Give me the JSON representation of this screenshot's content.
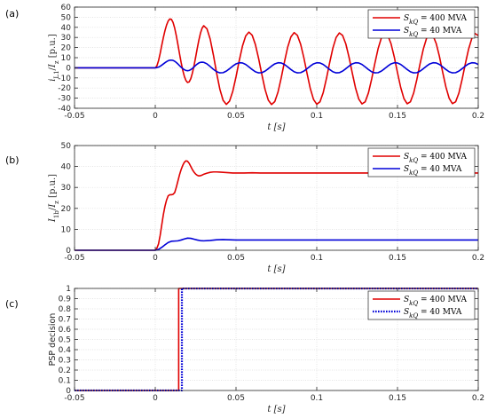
{
  "chart_data": [
    {
      "type": "line",
      "panel_label": "(a)",
      "xlabel": "t [s]",
      "ylabel": "i_L1/I_z [p.u.]",
      "xlim": [
        -0.05,
        0.2
      ],
      "ylim": [
        -40,
        60
      ],
      "xticks": [
        -0.05,
        0,
        0.05,
        0.1,
        0.15,
        0.2
      ],
      "yticks": [
        -40,
        -30,
        -20,
        -10,
        0,
        10,
        20,
        30,
        40,
        50,
        60
      ],
      "xtick_labels": [
        "-0.05",
        "0",
        "0.05",
        "0.1",
        "0.15",
        "0.2"
      ],
      "ytick_labels": [
        "-40",
        "-30",
        "-20",
        "-10",
        "0",
        "10",
        "20",
        "30",
        "40",
        "50",
        "60"
      ],
      "grid": true,
      "legend_position": "top-right",
      "series": [
        {
          "name": "S_kQ = 400 MVA",
          "legend": {
            "sym": "S",
            "sub": "kQ",
            "rest": " = 400 MVA"
          },
          "color": "#e00000",
          "line_style": "solid",
          "x": [
            -0.05,
            0,
            0.001,
            0.002,
            0.003,
            0.004,
            0.005,
            0.006,
            0.007,
            0.008,
            0.009,
            0.01,
            0.011,
            0.012,
            0.013,
            0.014,
            0.015,
            0.016,
            0.017,
            0.018,
            0.019,
            0.02,
            0.021,
            0.022,
            0.023,
            0.024,
            0.025,
            0.026,
            0.027,
            0.028,
            0.029,
            0.03,
            0.032,
            0.034,
            0.036,
            0.038,
            0.04,
            0.042,
            0.044,
            0.046,
            0.048,
            0.05,
            0.052,
            0.054,
            0.056,
            0.058,
            0.06,
            0.062,
            0.064,
            0.066,
            0.068,
            0.07,
            0.072,
            0.074,
            0.076,
            0.078,
            0.08,
            0.082,
            0.084,
            0.086,
            0.088,
            0.09,
            0.092,
            0.094,
            0.096,
            0.098,
            0.1,
            0.102,
            0.104,
            0.106,
            0.108,
            0.11,
            0.112,
            0.114,
            0.116,
            0.118,
            0.12,
            0.122,
            0.124,
            0.126,
            0.128,
            0.13,
            0.132,
            0.134,
            0.136,
            0.138,
            0.14,
            0.142,
            0.144,
            0.146,
            0.148,
            0.15,
            0.152,
            0.154,
            0.156,
            0.158,
            0.16,
            0.162,
            0.164,
            0.166,
            0.168,
            0.17,
            0.172,
            0.174,
            0.176,
            0.178,
            0.18,
            0.182,
            0.184,
            0.186,
            0.188,
            0.19,
            0.192,
            0.194,
            0.196,
            0.198,
            0.2
          ],
          "y": [
            0,
            0,
            1.9,
            6.9,
            14.0,
            22.1,
            29.8,
            36.7,
            42.3,
            46.3,
            48.3,
            47.9,
            44.9,
            39.4,
            31.9,
            23.2,
            14.1,
            5.4,
            -2.3,
            -8.4,
            -12.6,
            -14.5,
            -13.9,
            -10.7,
            -5.2,
            2.1,
            10.5,
            19.2,
            27.4,
            34.3,
            39.2,
            41.6,
            38.6,
            28.4,
            12.6,
            -5.3,
            -21.2,
            -32.1,
            -36.2,
            -32.9,
            -23.2,
            -8.9,
            7.1,
            21.5,
            31.5,
            35.3,
            32.2,
            23.0,
            9.2,
            -6.6,
            -21.4,
            -32.0,
            -36.3,
            -33.4,
            -24.0,
            -9.9,
            5.9,
            20.4,
            30.6,
            34.8,
            32.1,
            23.4,
            10.0,
            -5.7,
            -20.5,
            -31.3,
            -36.0,
            -33.6,
            -24.5,
            -10.6,
            5.1,
            19.6,
            30.0,
            34.5,
            32.0,
            23.6,
            10.4,
            -5.2,
            -19.9,
            -30.8,
            -35.7,
            -33.6,
            -24.8,
            -11.1,
            4.5,
            19.0,
            29.5,
            34.3,
            32.0,
            23.8,
            10.7,
            -4.8,
            -19.5,
            -30.5,
            -35.6,
            -33.6,
            -25.0,
            -11.4,
            4.2,
            18.6,
            29.2,
            34.1,
            31.9,
            23.9,
            11.0,
            -4.5,
            -19.1,
            -30.2,
            -35.4,
            -33.6,
            -25.1,
            -11.6,
            3.9,
            18.3,
            28.9,
            33.9,
            31.9
          ]
        },
        {
          "name": "S_kQ = 40 MVA",
          "legend": {
            "sym": "S",
            "sub": "kQ",
            "rest": " = 40 MVA"
          },
          "color": "#0000d8",
          "line_style": "solid",
          "x": [
            -0.05,
            0,
            0.001,
            0.002,
            0.003,
            0.004,
            0.005,
            0.006,
            0.007,
            0.008,
            0.009,
            0.01,
            0.011,
            0.012,
            0.013,
            0.014,
            0.015,
            0.016,
            0.017,
            0.018,
            0.019,
            0.02,
            0.021,
            0.022,
            0.023,
            0.024,
            0.025,
            0.026,
            0.027,
            0.028,
            0.029,
            0.03,
            0.032,
            0.034,
            0.036,
            0.038,
            0.04,
            0.042,
            0.044,
            0.046,
            0.048,
            0.05,
            0.052,
            0.054,
            0.056,
            0.058,
            0.06,
            0.062,
            0.064,
            0.066,
            0.068,
            0.07,
            0.072,
            0.074,
            0.076,
            0.078,
            0.08,
            0.082,
            0.084,
            0.086,
            0.088,
            0.09,
            0.092,
            0.094,
            0.096,
            0.098,
            0.1,
            0.102,
            0.104,
            0.106,
            0.108,
            0.11,
            0.112,
            0.114,
            0.116,
            0.118,
            0.12,
            0.122,
            0.124,
            0.126,
            0.128,
            0.13,
            0.132,
            0.134,
            0.136,
            0.138,
            0.14,
            0.142,
            0.144,
            0.146,
            0.148,
            0.15,
            0.152,
            0.154,
            0.156,
            0.158,
            0.16,
            0.162,
            0.164,
            0.166,
            0.168,
            0.17,
            0.172,
            0.174,
            0.176,
            0.178,
            0.18,
            0.182,
            0.184,
            0.186,
            0.188,
            0.19,
            0.192,
            0.194,
            0.196,
            0.198,
            0.2
          ],
          "y": [
            0,
            0,
            0.2,
            0.7,
            1.5,
            2.6,
            3.8,
            5.0,
            6.1,
            7.0,
            7.5,
            7.6,
            7.3,
            6.5,
            5.3,
            3.8,
            2.2,
            0.6,
            -0.8,
            -1.9,
            -2.6,
            -2.9,
            -2.6,
            -1.8,
            -0.6,
            0.9,
            2.4,
            3.7,
            4.8,
            5.4,
            5.6,
            5.4,
            3.9,
            1.3,
            -1.5,
            -3.8,
            -5.0,
            -4.8,
            -3.3,
            -0.9,
            1.7,
            3.9,
            5.0,
            4.8,
            3.3,
            0.9,
            -1.7,
            -3.9,
            -5.0,
            -4.8,
            -3.3,
            -0.9,
            1.7,
            3.9,
            5.0,
            4.8,
            3.3,
            0.9,
            -1.7,
            -3.9,
            -5.0,
            -4.8,
            -3.3,
            -0.9,
            1.7,
            3.9,
            5.0,
            4.8,
            3.3,
            0.9,
            -1.7,
            -3.9,
            -5.0,
            -4.8,
            -3.3,
            -0.9,
            1.7,
            3.9,
            5.0,
            4.8,
            3.3,
            0.9,
            -1.7,
            -3.9,
            -5.0,
            -4.8,
            -3.3,
            -0.9,
            1.7,
            3.9,
            5.0,
            4.8,
            3.3,
            0.9,
            -1.7,
            -3.9,
            -5.0,
            -4.8,
            -3.3,
            -0.9,
            1.7,
            3.9,
            5.0,
            4.8,
            3.3,
            0.9,
            -1.7,
            -3.9,
            -5.0,
            -4.8,
            -3.3,
            -0.9,
            1.7,
            3.9,
            5.0,
            4.8,
            3.3
          ]
        }
      ]
    },
    {
      "type": "line",
      "panel_label": "(b)",
      "xlabel": "t [s]",
      "ylabel": "I_1b/I_z [p.u.]",
      "xlim": [
        -0.05,
        0.2
      ],
      "ylim": [
        0,
        50
      ],
      "xticks": [
        -0.05,
        0,
        0.05,
        0.1,
        0.15,
        0.2
      ],
      "yticks": [
        0,
        10,
        20,
        30,
        40,
        50
      ],
      "xtick_labels": [
        "-0.05",
        "0",
        "0.05",
        "0.1",
        "0.15",
        "0.2"
      ],
      "ytick_labels": [
        "0",
        "10",
        "20",
        "30",
        "40",
        "50"
      ],
      "grid": true,
      "legend_position": "top-right",
      "series": [
        {
          "name": "S_kQ = 400 MVA",
          "legend": {
            "sym": "S",
            "sub": "kQ",
            "rest": " = 400 MVA"
          },
          "color": "#e00000",
          "line_style": "solid",
          "x": [
            -0.05,
            0,
            0.001,
            0.002,
            0.003,
            0.004,
            0.005,
            0.006,
            0.007,
            0.008,
            0.009,
            0.01,
            0.011,
            0.012,
            0.013,
            0.014,
            0.015,
            0.016,
            0.017,
            0.018,
            0.019,
            0.02,
            0.021,
            0.022,
            0.023,
            0.024,
            0.025,
            0.026,
            0.027,
            0.028,
            0.029,
            0.03,
            0.032,
            0.034,
            0.036,
            0.038,
            0.04,
            0.042,
            0.044,
            0.046,
            0.048,
            0.05,
            0.055,
            0.06,
            0.065,
            0.07,
            0.08,
            0.09,
            0.1,
            0.12,
            0.14,
            0.16,
            0.18,
            0.2
          ],
          "y": [
            0,
            0,
            1,
            3,
            7,
            12,
            17,
            21,
            24,
            26,
            26.5,
            26.5,
            26.7,
            27.5,
            30,
            33,
            36,
            38.5,
            40.5,
            42,
            42.7,
            42.5,
            41.5,
            40,
            38.5,
            37.3,
            36.4,
            35.8,
            35.5,
            35.6,
            35.9,
            36.3,
            36.8,
            37.2,
            37.4,
            37.4,
            37.3,
            37.2,
            37.1,
            37.0,
            36.9,
            36.9,
            36.9,
            37.0,
            36.9,
            36.9,
            36.9,
            36.9,
            36.9,
            36.9,
            36.9,
            36.9,
            36.9,
            36.9
          ]
        },
        {
          "name": "S_kQ = 40 MVA",
          "legend": {
            "sym": "S",
            "sub": "kQ",
            "rest": " = 40 MVA"
          },
          "color": "#0000d8",
          "line_style": "solid",
          "x": [
            -0.05,
            0,
            0.002,
            0.004,
            0.006,
            0.008,
            0.01,
            0.012,
            0.014,
            0.016,
            0.018,
            0.02,
            0.022,
            0.024,
            0.026,
            0.028,
            0.03,
            0.034,
            0.038,
            0.042,
            0.046,
            0.05,
            0.06,
            0.07,
            0.08,
            0.1,
            0.12,
            0.14,
            0.16,
            0.18,
            0.2
          ],
          "y": [
            0,
            0,
            0.4,
            1.4,
            2.6,
            3.7,
            4.3,
            4.4,
            4.5,
            4.9,
            5.4,
            5.8,
            5.7,
            5.3,
            4.9,
            4.6,
            4.5,
            4.7,
            5.0,
            5.1,
            5.0,
            4.9,
            4.9,
            4.9,
            4.9,
            4.9,
            4.9,
            4.9,
            4.9,
            4.9,
            4.9
          ]
        }
      ]
    },
    {
      "type": "line",
      "panel_label": "(c)",
      "xlabel": "t [s]",
      "ylabel": "PSP decision",
      "xlim": [
        -0.05,
        0.2
      ],
      "ylim": [
        0,
        1
      ],
      "xticks": [
        -0.05,
        0,
        0.05,
        0.1,
        0.15,
        0.2
      ],
      "yticks": [
        0,
        0.1,
        0.2,
        0.3,
        0.4,
        0.5,
        0.6,
        0.7,
        0.8,
        0.9,
        1
      ],
      "xtick_labels": [
        "-0.05",
        "0",
        "0.05",
        "0.1",
        "0.15",
        "0.2"
      ],
      "ytick_labels": [
        "0",
        "0.1",
        "0.2",
        "0.3",
        "0.4",
        "0.5",
        "0.6",
        "0.7",
        "0.8",
        "0.9",
        "1"
      ],
      "grid": true,
      "legend_position": "top-right",
      "series": [
        {
          "name": "S_kQ = 400 MVA",
          "legend": {
            "sym": "S",
            "sub": "kQ",
            "rest": " = 400 MVA"
          },
          "color": "#e00000",
          "line_style": "solid",
          "x": [
            -0.05,
            0.0145,
            0.0145,
            0.2
          ],
          "y": [
            0,
            0,
            1,
            1
          ]
        },
        {
          "name": "S_kQ = 40 MVA",
          "legend": {
            "sym": "S",
            "sub": "kQ",
            "rest": " = 40 MVA"
          },
          "color": "#0000d8",
          "line_style": "dotted",
          "x": [
            -0.05,
            0.0165,
            0.0165,
            0.2
          ],
          "y": [
            0,
            0,
            1,
            1
          ]
        }
      ]
    }
  ]
}
